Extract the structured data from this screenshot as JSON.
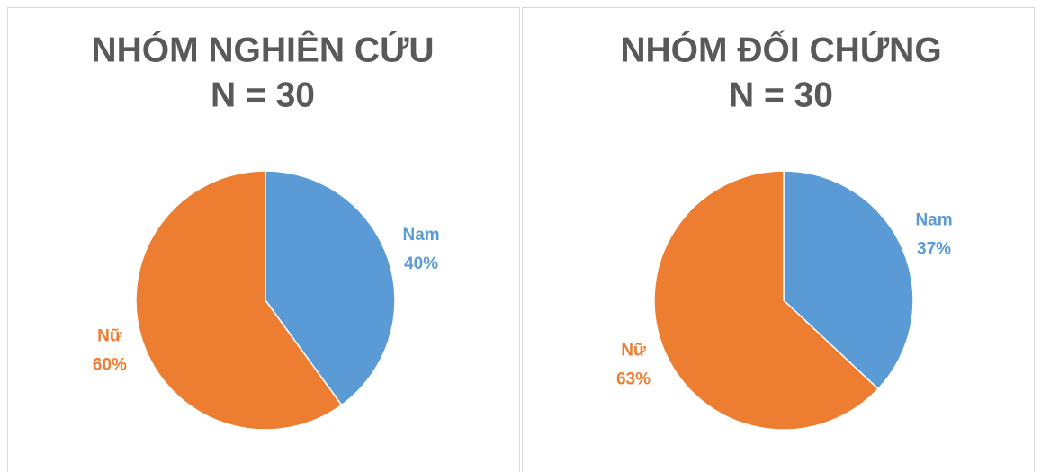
{
  "chart_data": [
    {
      "type": "pie",
      "title": "NHÓM NGHIÊN CỨU",
      "subtitle": "N = 30",
      "categories": [
        "Nam",
        "Nữ"
      ],
      "values": [
        40,
        60
      ],
      "value_labels": [
        "40%",
        "60%"
      ],
      "colors": [
        "#5b9bd5",
        "#ed7d31"
      ]
    },
    {
      "type": "pie",
      "title": "NHÓM ĐỐI CHỨNG",
      "subtitle": "N = 30",
      "categories": [
        "Nam",
        "Nữ"
      ],
      "values": [
        37,
        63
      ],
      "value_labels": [
        "37%",
        "63%"
      ],
      "colors": [
        "#5b9bd5",
        "#ed7d31"
      ]
    }
  ]
}
